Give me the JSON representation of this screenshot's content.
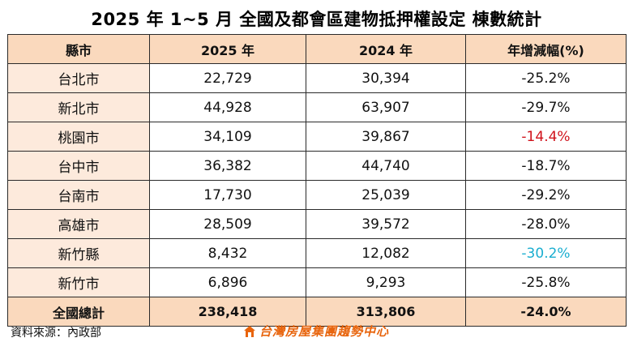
{
  "title": "2025 年 1~5 月  全國及都會區建物抵押權設定  棟數統計",
  "table": {
    "headers": [
      "縣市",
      "2025 年",
      "2024 年",
      "年增減幅(%)"
    ],
    "rows": [
      {
        "city": "台北市",
        "y2025": "22,729",
        "y2024": "30,394",
        "change": "-25.2%",
        "change_color": "#111111"
      },
      {
        "city": "新北市",
        "y2025": "44,928",
        "y2024": "63,907",
        "change": "-29.7%",
        "change_color": "#111111"
      },
      {
        "city": "桃園市",
        "y2025": "34,109",
        "y2024": "39,867",
        "change": "-14.4%",
        "change_color": "#d0121b"
      },
      {
        "city": "台中市",
        "y2025": "36,382",
        "y2024": "44,740",
        "change": "-18.7%",
        "change_color": "#111111"
      },
      {
        "city": "台南市",
        "y2025": "17,730",
        "y2024": "25,039",
        "change": "-29.2%",
        "change_color": "#111111"
      },
      {
        "city": "高雄市",
        "y2025": "28,509",
        "y2024": "39,572",
        "change": "-28.0%",
        "change_color": "#111111"
      },
      {
        "city": "新竹縣",
        "y2025": "8,432",
        "y2024": "12,082",
        "change": "-30.2%",
        "change_color": "#1aaed0"
      },
      {
        "city": "新竹市",
        "y2025": "6,896",
        "y2024": "9,293",
        "change": "-25.8%",
        "change_color": "#111111"
      }
    ],
    "total": {
      "city": "全國總計",
      "y2025": "238,418",
      "y2024": "313,806",
      "change": "-24.0%"
    }
  },
  "footer": {
    "source": "資料來源：內政部",
    "brand": "台灣房屋集團趨勢中心",
    "brand_icon": "taiwan-realty-logo-icon"
  },
  "colors": {
    "header_bg": "#fad9bd",
    "city_bg": "#fdeadc",
    "highlight_red": "#d0121b",
    "highlight_cyan": "#1aaed0",
    "brand_orange": "#e8640c"
  }
}
